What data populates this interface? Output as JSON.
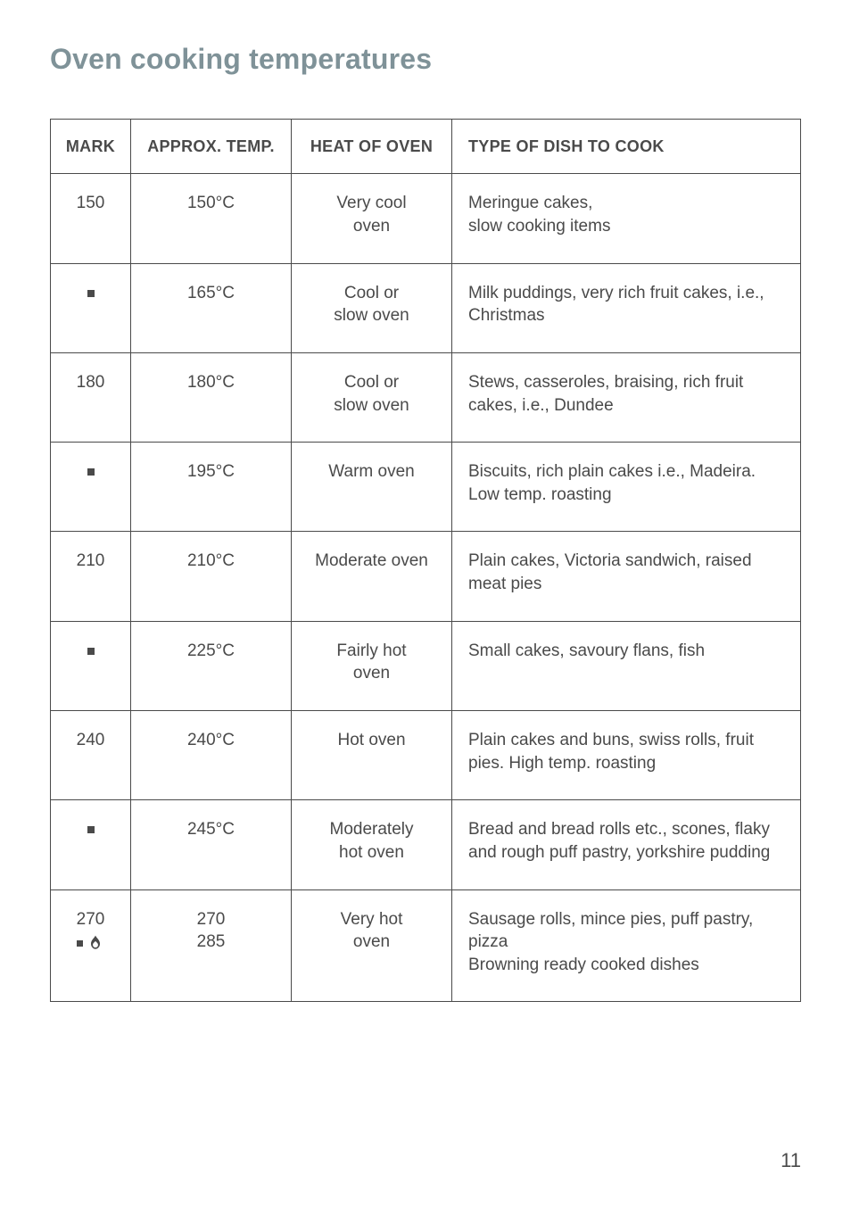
{
  "title": "Oven cooking temperatures",
  "pageNumber": "11",
  "table": {
    "headers": {
      "mark": "MARK",
      "temp": "APPROX. TEMP.",
      "heat": "HEAT OF OVEN",
      "dish": "TYPE OF DISH TO COOK"
    },
    "rows": [
      {
        "mark": "150",
        "markType": "text",
        "temp": "150°C",
        "heat": "Very cool oven",
        "dish": "Meringue cakes,\nslow cooking items"
      },
      {
        "mark": "",
        "markType": "dot",
        "temp": "165°C",
        "heat": "Cool or slow oven",
        "dish": "Milk puddings, very rich fruit cakes, i.e., Christmas"
      },
      {
        "mark": "180",
        "markType": "text",
        "temp": "180°C",
        "heat": "Cool or slow oven",
        "dish": "Stews, casseroles, braising, rich fruit cakes, i.e., Dundee"
      },
      {
        "mark": "",
        "markType": "dot",
        "temp": "195°C",
        "heat": "Warm oven",
        "dish": "Biscuits, rich plain cakes i.e., Madeira. Low temp. roasting"
      },
      {
        "mark": "210",
        "markType": "text",
        "temp": "210°C",
        "heat": "Moderate oven",
        "dish": "Plain cakes, Victoria sandwich, raised meat pies"
      },
      {
        "mark": "",
        "markType": "dot",
        "temp": "225°C",
        "heat": "Fairly hot oven",
        "dish": "Small cakes, savoury flans, fish"
      },
      {
        "mark": "240",
        "markType": "text",
        "temp": "240°C",
        "heat": "Hot oven",
        "dish": "Plain cakes and buns, swiss rolls, fruit pies. High temp. roasting"
      },
      {
        "mark": "",
        "markType": "dot",
        "temp": "245°C",
        "heat": "Moderately hot oven",
        "dish": "Bread and bread rolls etc., scones, flaky and rough puff pastry, yorkshire pudding"
      },
      {
        "mark": "270",
        "markType": "text-flame",
        "temp": "270\n285",
        "heat": "Very hot oven",
        "dish": "Sausage rolls, mince pies, puff pastry, pizza\nBrowning ready cooked dishes"
      }
    ]
  },
  "colors": {
    "titleColor": "#7f9298",
    "bodyText": "#4a4a4a",
    "border": "#4a4a4a",
    "background": "#ffffff"
  }
}
